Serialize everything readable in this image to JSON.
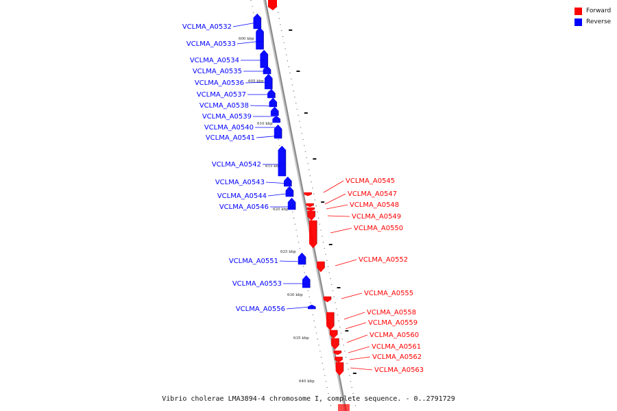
{
  "legend": {
    "forward_label": "Forward",
    "reverse_label": "Reverse",
    "forward_color": "#ff0000",
    "reverse_color": "#0000ff"
  },
  "caption": "Vibrio cholerae LMA3894-4 chromosome I, complete sequence. - 0..2791729",
  "kbp_ticks": [
    "600 kbp",
    "605 kbp",
    "610 kbp",
    "615 kbp",
    "620 kbp",
    "625 kbp",
    "630 kbp",
    "635 kbp",
    "640 kbp"
  ],
  "genes": [
    {
      "name": "VCLMA_A0532",
      "strand": "reverse"
    },
    {
      "name": "VCLMA_A0533",
      "strand": "reverse"
    },
    {
      "name": "VCLMA_A0534",
      "strand": "reverse"
    },
    {
      "name": "VCLMA_A0535",
      "strand": "reverse"
    },
    {
      "name": "VCLMA_A0536",
      "strand": "reverse"
    },
    {
      "name": "VCLMA_A0537",
      "strand": "reverse"
    },
    {
      "name": "VCLMA_A0538",
      "strand": "reverse"
    },
    {
      "name": "VCLMA_A0539",
      "strand": "reverse"
    },
    {
      "name": "VCLMA_A0540",
      "strand": "reverse"
    },
    {
      "name": "VCLMA_A0541",
      "strand": "reverse"
    },
    {
      "name": "VCLMA_A0542",
      "strand": "reverse"
    },
    {
      "name": "VCLMA_A0543",
      "strand": "reverse"
    },
    {
      "name": "VCLMA_A0544",
      "strand": "reverse"
    },
    {
      "name": "VCLMA_A0546",
      "strand": "reverse"
    },
    {
      "name": "VCLMA_A0551",
      "strand": "reverse"
    },
    {
      "name": "VCLMA_A0553",
      "strand": "reverse"
    },
    {
      "name": "VCLMA_A0556",
      "strand": "reverse"
    },
    {
      "name": "VCLMA_A0545",
      "strand": "forward"
    },
    {
      "name": "VCLMA_A0547",
      "strand": "forward"
    },
    {
      "name": "VCLMA_A0548",
      "strand": "forward"
    },
    {
      "name": "VCLMA_A0549",
      "strand": "forward"
    },
    {
      "name": "VCLMA_A0550",
      "strand": "forward"
    },
    {
      "name": "VCLMA_A0552",
      "strand": "forward"
    },
    {
      "name": "VCLMA_A0555",
      "strand": "forward"
    },
    {
      "name": "VCLMA_A0558",
      "strand": "forward"
    },
    {
      "name": "VCLMA_A0559",
      "strand": "forward"
    },
    {
      "name": "VCLMA_A0560",
      "strand": "forward"
    },
    {
      "name": "VCLMA_A0561",
      "strand": "forward"
    },
    {
      "name": "VCLMA_A0562",
      "strand": "forward"
    },
    {
      "name": "VCLMA_A0563",
      "strand": "forward"
    }
  ]
}
